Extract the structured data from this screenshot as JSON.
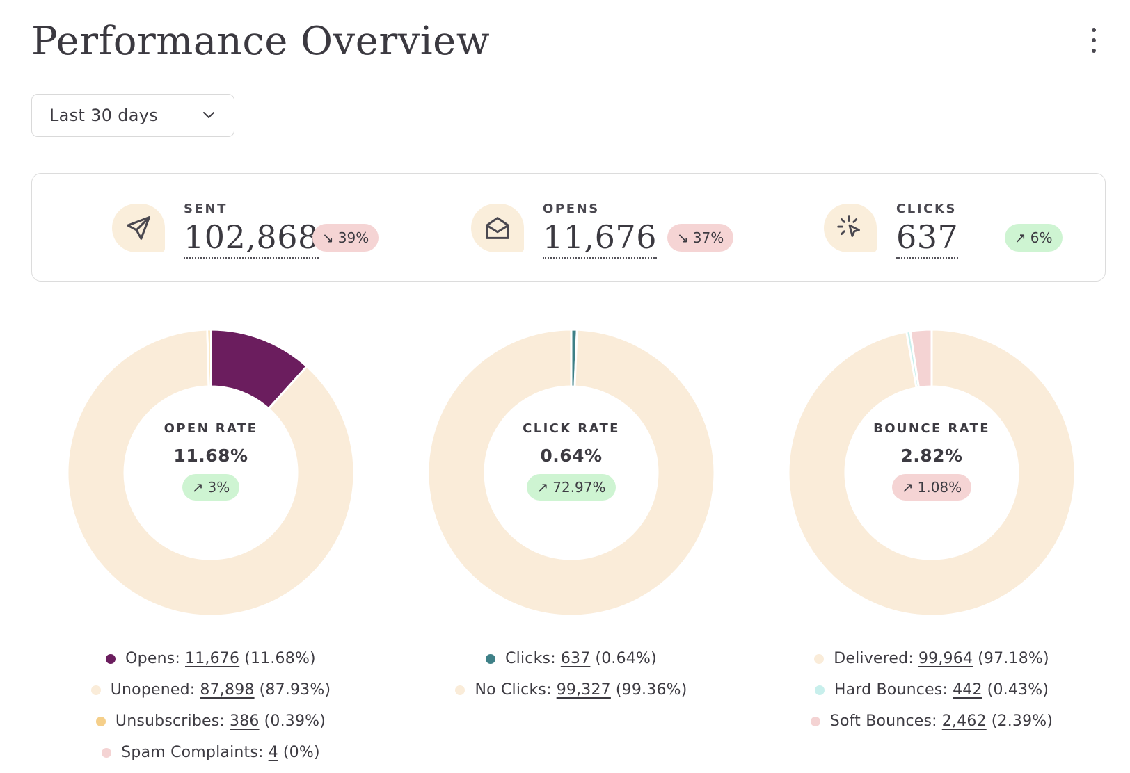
{
  "header": {
    "title": "Performance Overview",
    "menu_icon": "kebab-vertical-icon"
  },
  "date_range": {
    "selected": "Last 30 days",
    "icon": "chevron-down-icon"
  },
  "stats": [
    {
      "label": "SENT",
      "value": "102,868",
      "change": "39%",
      "direction": "down",
      "icon": "paper-plane-icon"
    },
    {
      "label": "OPENS",
      "value": "11,676",
      "change": "37%",
      "direction": "down",
      "icon": "open-envelope-icon"
    },
    {
      "label": "CLICKS",
      "value": "637",
      "change": "6%",
      "direction": "up",
      "icon": "cursor-click-icon"
    }
  ],
  "colors": {
    "icon_bg": "#faeedb",
    "badge_down_bg": "#f5d4d4",
    "badge_up_bg": "#cef4d2",
    "text": "#3d3b42"
  },
  "chart_data": [
    {
      "type": "pie",
      "variant": "donut",
      "title": "OPEN RATE",
      "center_value": "11.68%",
      "center_change": "3%",
      "center_change_direction": "up",
      "center_change_tone": "good",
      "slices": [
        {
          "name": "Opens",
          "count": "11,676",
          "value": 11676,
          "percent": "11.68%",
          "color": "#6b1d5e"
        },
        {
          "name": "Unopened",
          "count": "87,898",
          "value": 87898,
          "percent": "87.93%",
          "color": "#faecd9"
        },
        {
          "name": "Unsubscribes",
          "count": "386",
          "value": 386,
          "percent": "0.39%",
          "color": "#f5cf8a"
        },
        {
          "name": "Spam Complaints",
          "count": "4",
          "value": 4,
          "percent": "0%",
          "color": "#f4d3d3"
        }
      ]
    },
    {
      "type": "pie",
      "variant": "donut",
      "title": "CLICK RATE",
      "center_value": "0.64%",
      "center_change": "72.97%",
      "center_change_direction": "up",
      "center_change_tone": "good",
      "slices": [
        {
          "name": "Clicks",
          "count": "637",
          "value": 637,
          "percent": "0.64%",
          "color": "#3e8087"
        },
        {
          "name": "No Clicks",
          "count": "99,327",
          "value": 99327,
          "percent": "99.36%",
          "color": "#faecd9"
        }
      ]
    },
    {
      "type": "pie",
      "variant": "donut",
      "title": "BOUNCE RATE",
      "center_value": "2.82%",
      "center_change": "1.08%",
      "center_change_direction": "up",
      "center_change_tone": "bad",
      "slices": [
        {
          "name": "Delivered",
          "count": "99,964",
          "value": 99964,
          "percent": "97.18%",
          "color": "#faecd9"
        },
        {
          "name": "Hard Bounces",
          "count": "442",
          "value": 442,
          "percent": "0.43%",
          "color": "#c8efec"
        },
        {
          "name": "Soft Bounces",
          "count": "2,462",
          "value": 2462,
          "percent": "2.39%",
          "color": "#f4d3d3"
        }
      ]
    }
  ]
}
